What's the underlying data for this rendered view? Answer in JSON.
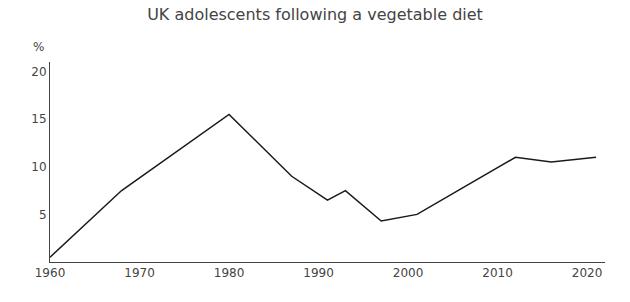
{
  "chart_data": {
    "type": "line",
    "title": "UK adolescents following a vegetable diet",
    "ylabel": "%",
    "x": [
      1960,
      1968,
      1980,
      1987,
      1991,
      1993,
      1997,
      2001,
      2012,
      2016,
      2021
    ],
    "values": [
      0.5,
      7.5,
      15.5,
      9.0,
      6.5,
      7.5,
      4.3,
      5.0,
      11.0,
      10.5,
      11.0
    ],
    "color": "#1a1a1a",
    "xlim": [
      1960,
      2022
    ],
    "ylim": [
      0,
      21
    ],
    "xticks": [
      1960,
      1970,
      1980,
      1990,
      2000,
      2010,
      2020
    ],
    "yticks": [
      5,
      10,
      15,
      20
    ],
    "grid": false
  }
}
